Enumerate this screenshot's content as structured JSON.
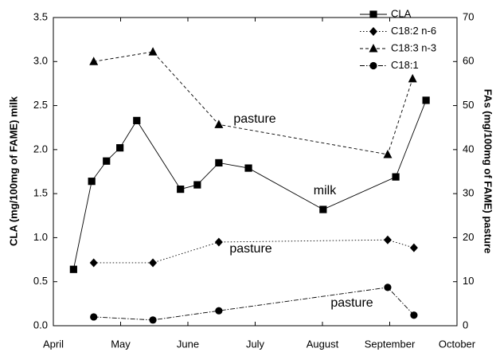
{
  "chart_data": {
    "type": "line",
    "ylabel": "CLA (mg/100mg of FAME) milk",
    "y2label": "FAs (mg/100mg of FAME) pasture",
    "xlim": [
      0,
      6
    ],
    "xticks": [
      {
        "value": 0,
        "label": "April"
      },
      {
        "value": 1,
        "label": "May"
      },
      {
        "value": 2,
        "label": "June"
      },
      {
        "value": 3,
        "label": "July"
      },
      {
        "value": 4,
        "label": "August"
      },
      {
        "value": 5,
        "label": "September"
      },
      {
        "value": 6,
        "label": "October"
      }
    ],
    "ylim": [
      0,
      3.5
    ],
    "yticks": [
      {
        "value": 0,
        "label": "0.0"
      },
      0.5,
      {
        "value": 1,
        "label": "1.0"
      },
      1.5,
      {
        "value": 2,
        "label": "2.0"
      },
      2.5,
      {
        "value": 3,
        "label": "3.0"
      },
      3.5
    ],
    "y2lim": [
      0,
      70
    ],
    "y2ticks": [
      0,
      10,
      20,
      30,
      40,
      50,
      60,
      70
    ],
    "legend": "upper right",
    "series": [
      {
        "name": "CLA",
        "color": "#000000",
        "marker": "square",
        "line_style": "solid",
        "x": [
          0.3,
          0.57,
          0.79,
          0.99,
          1.24,
          1.89,
          2.14,
          2.46,
          2.9,
          4.01,
          5.09,
          5.54
        ],
        "values": [
          0.64,
          1.64,
          1.87,
          2.02,
          2.33,
          1.55,
          1.6,
          1.85,
          1.79,
          1.32,
          1.69,
          2.56
        ]
      },
      {
        "name": "C18:2 n-6",
        "color": "#000000",
        "marker": "diamond",
        "line_style": "dotted",
        "axis": "y2",
        "x": [
          0.6,
          1.48,
          2.46,
          4.97,
          5.36
        ],
        "values": [
          14.3,
          14.3,
          19.0,
          19.5,
          17.7
        ]
      },
      {
        "name": "C18:3 n-3",
        "color": "#000000",
        "marker": "triangle",
        "line_style": "dashed",
        "axis": "y2",
        "x": [
          0.6,
          1.48,
          2.46,
          4.97,
          5.34
        ],
        "values": [
          60.0,
          62.2,
          45.7,
          38.9,
          56.1
        ]
      },
      {
        "name": "C18:1",
        "color": "#000000",
        "marker": "circle",
        "line_style": "dashdot",
        "axis": "y2",
        "x": [
          0.6,
          1.48,
          2.46,
          4.97,
          5.36
        ],
        "values": [
          2.0,
          1.3,
          3.4,
          8.7,
          2.4
        ]
      }
    ],
    "annotations": [
      "pasture",
      "milk",
      "pasture",
      "pasture"
    ]
  }
}
